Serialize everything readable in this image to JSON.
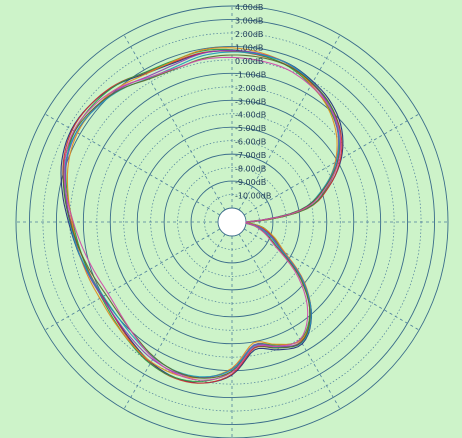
{
  "colors": {
    "plot_background": "#cdf3c9",
    "grid_solid": "#3a6c8a",
    "grid_dotted": "#4e7f9c",
    "inner_disc": "#ffffff",
    "tick_text": "#24405a"
  },
  "chart_data": {
    "type": "polar-line",
    "title": "",
    "radial_unit": "dB",
    "radial_range_db": [
      -11,
      4
    ],
    "angular_spokes_deg": [
      0,
      30,
      60,
      90,
      120,
      150,
      180,
      210,
      240,
      270,
      300,
      330
    ],
    "grid": "solid rings every 2 dB, dotted rings at odd dB, dashed spokes every 30°",
    "radial_tick_labels": [
      "4.00dB",
      "3.00dB",
      "2.00dB",
      "1.00dB",
      "0.00dB",
      "-1.00dB",
      "-2.00dB",
      "-3.00dB",
      "-4.00dB",
      "-5.00dB",
      "-6.00dB",
      "-7.00dB",
      "-8.00dB",
      "-9.00dB",
      "-10.00dB"
    ],
    "series_count": 8,
    "series_colors": [
      "#1e2a78",
      "#d03030",
      "#2a9a44",
      "#e08a1c",
      "#8a3cb8",
      "#1c9ab8",
      "#5a6a2a",
      "#d048a8"
    ],
    "base_pattern": {
      "angle_deg": [
        0,
        10,
        20,
        30,
        40,
        50,
        60,
        70,
        80,
        90,
        100,
        110,
        120,
        130,
        140,
        150,
        160,
        170,
        180,
        190,
        200,
        210,
        220,
        230,
        240,
        250,
        260,
        270,
        280,
        290,
        300,
        310,
        320,
        330,
        340,
        350
      ],
      "gain_db": [
        -10.8,
        -6.5,
        -4.5,
        -2.8,
        -1.5,
        -0.6,
        0.0,
        0.5,
        0.7,
        0.8,
        0.8,
        0.6,
        0.7,
        1.2,
        1.5,
        1.6,
        1.3,
        0.7,
        0.1,
        -0.3,
        -0.6,
        -0.8,
        -0.7,
        -0.4,
        0.0,
        0.2,
        0.0,
        -0.8,
        -2.5,
        -2.0,
        -1.6,
        -2.8,
        -5.0,
        -7.6,
        -8.8,
        -9.8
      ]
    }
  }
}
